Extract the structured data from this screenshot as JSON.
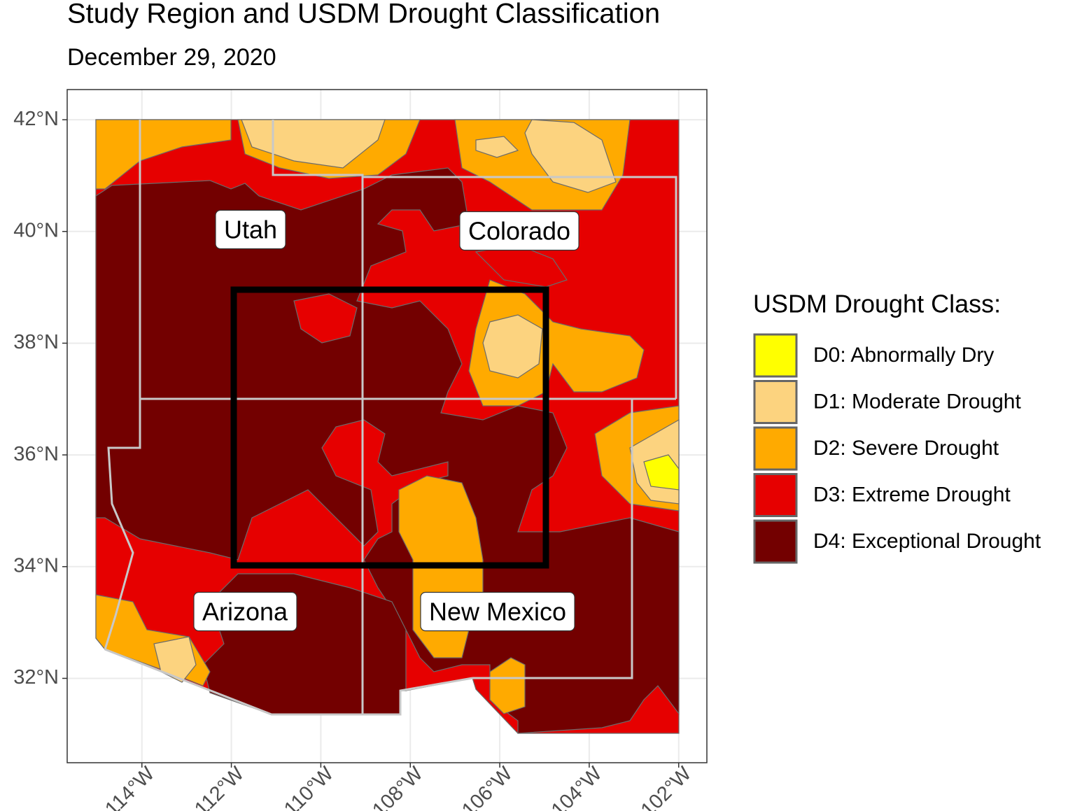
{
  "title": "Study Region and USDM Drought Classification",
  "subtitle": "December 29, 2020",
  "map": {
    "xlim": [
      -115.67,
      -101.37
    ],
    "ylim": [
      30.49,
      42.54
    ],
    "lon_ticks": [
      {
        "value": -114,
        "label": "114°W"
      },
      {
        "value": -112,
        "label": "112°W"
      },
      {
        "value": -110,
        "label": "110°W"
      },
      {
        "value": -108,
        "label": "108°W"
      },
      {
        "value": -106,
        "label": "106°W"
      },
      {
        "value": -104,
        "label": "104°W"
      },
      {
        "value": -102,
        "label": "102°W"
      }
    ],
    "lat_ticks": [
      {
        "value": 42,
        "label": "42°N"
      },
      {
        "value": 40,
        "label": "40°N"
      },
      {
        "value": 38,
        "label": "38°N"
      },
      {
        "value": 36,
        "label": "36°N"
      },
      {
        "value": 34,
        "label": "34°N"
      },
      {
        "value": 32,
        "label": "32°N"
      }
    ],
    "state_labels": [
      "Utah",
      "Colorado",
      "Arizona",
      "New Mexico"
    ]
  },
  "legend": {
    "title": "USDM Drought Class:",
    "items": [
      {
        "label": "D0: Abnormally Dry",
        "color": "#ffff00"
      },
      {
        "label": "D1: Moderate Drought",
        "color": "#fcd37f"
      },
      {
        "label": "D2: Severe Drought",
        "color": "#ffaa00"
      },
      {
        "label": "D3: Extreme Drought",
        "color": "#e60000"
      },
      {
        "label": "D4: Exceptional Drought",
        "color": "#730000"
      }
    ]
  }
}
